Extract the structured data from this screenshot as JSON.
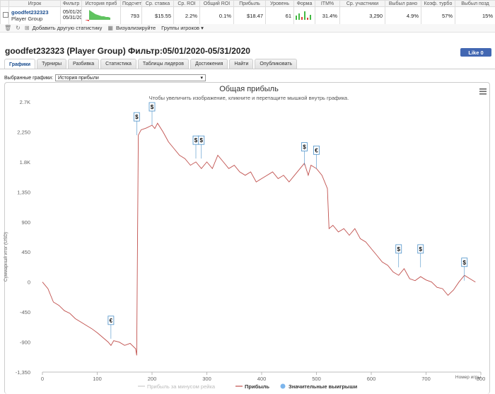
{
  "stats": {
    "headers": [
      "",
      "Игрок",
      "Фильтр",
      "История приб",
      "Подсчет",
      "Ср. ставка",
      "Ср. ROI",
      "Общий ROI",
      "Прибыль",
      "Уровень",
      "Форма",
      "ITM%",
      "Ср. участники",
      "Выбыл рано",
      "Коэф. турбо",
      "Выбыл позд"
    ],
    "row": {
      "player": "goodfet232323",
      "group": "Player Group",
      "filter_from": "05/01/20",
      "filter_to": "05/31/20",
      "count": "793",
      "avg_stake": "$15.55",
      "avg_roi": "2.2%",
      "total_roi": "0.1%",
      "profit": "$18.47",
      "level": "61",
      "itm": "31.4%",
      "avg_entrants": "3,290",
      "early_bust": "4.9%",
      "turbo_ratio": "57%",
      "late_bust": "15%"
    }
  },
  "toolbar": {
    "add_label": "Добавить другую статистику",
    "visualize_label": "Визуализируйте",
    "groups_label": "Группы игроков"
  },
  "page_title": "goodfet232323 (Player Group) Фильтр:05/01/2020-05/31/2020",
  "like_label": "Like 0",
  "tabs": [
    "Графики",
    "Турниры",
    "Разбивка",
    "Статистика",
    "Таблицы лидеров",
    "Достижения",
    "Найти",
    "Опубликовать"
  ],
  "selector": {
    "label": "Выбранные графики:",
    "value": "История прибыли"
  },
  "colors": {
    "profit_line": "#c0504d",
    "rake_line": "#cccccc",
    "flag_border": "#4a90c8",
    "win_marker": "#7cb5ec"
  },
  "chart_data": {
    "type": "line",
    "title": "Общая прибыль",
    "subtitle": "Чтобы увеличить изображение, кликните и перетащите мышкой внутрь графика.",
    "ylabel": "Суммарный итог (USD)",
    "xlabel": "Номер игры",
    "ylim": [
      -1350,
      2700
    ],
    "xlim": [
      0,
      800
    ],
    "yticks": [
      "2.7K",
      "2,250",
      "1.8K",
      "1,350",
      "900",
      "450",
      "0",
      "-450",
      "-900",
      "-1,350"
    ],
    "ytick_values": [
      2700,
      2250,
      1800,
      1350,
      900,
      450,
      0,
      -450,
      -900,
      -1350
    ],
    "xticks": [
      "0",
      "100",
      "200",
      "300",
      "400",
      "500",
      "600",
      "700",
      "800"
    ],
    "xtick_values": [
      0,
      100,
      200,
      300,
      400,
      500,
      600,
      700,
      800
    ],
    "legend": [
      "Прибыль за минусом рейка",
      "Прибыль",
      "Значительные выигрыши"
    ],
    "series": [
      {
        "name": "Прибыль",
        "x": [
          0,
          10,
          20,
          30,
          40,
          50,
          60,
          70,
          80,
          90,
          100,
          110,
          120,
          125,
          130,
          140,
          150,
          160,
          170,
          172,
          175,
          180,
          190,
          200,
          205,
          210,
          220,
          230,
          240,
          250,
          260,
          270,
          280,
          290,
          300,
          310,
          320,
          330,
          340,
          350,
          360,
          370,
          380,
          390,
          400,
          410,
          420,
          430,
          440,
          450,
          460,
          470,
          478,
          485,
          490,
          500,
          510,
          520,
          523,
          530,
          540,
          550,
          560,
          570,
          580,
          590,
          600,
          610,
          620,
          630,
          640,
          650,
          660,
          670,
          680,
          690,
          700,
          710,
          720,
          730,
          740,
          750,
          760,
          770,
          780,
          790
        ],
        "y": [
          0,
          -100,
          -300,
          -350,
          -430,
          -470,
          -550,
          -600,
          -650,
          -700,
          -760,
          -830,
          -900,
          -950,
          -880,
          -900,
          -950,
          -920,
          -1000,
          -1100,
          2200,
          2280,
          2310,
          2350,
          2300,
          2380,
          2250,
          2100,
          2000,
          1900,
          1850,
          1750,
          1800,
          1700,
          1800,
          1700,
          1900,
          1800,
          1700,
          1750,
          1650,
          1600,
          1650,
          1500,
          1550,
          1600,
          1650,
          1550,
          1600,
          1500,
          1600,
          1700,
          1780,
          1600,
          1750,
          1700,
          1600,
          1400,
          800,
          850,
          750,
          800,
          700,
          800,
          650,
          600,
          500,
          400,
          300,
          250,
          150,
          100,
          200,
          50,
          20,
          80,
          30,
          0,
          -80,
          -100,
          -200,
          -120,
          0,
          100,
          50,
          0
        ],
        "color": "#c0504d"
      }
    ],
    "big_wins": [
      {
        "x": 125,
        "y": -850,
        "symbol": "€"
      },
      {
        "x": 172,
        "y": 2200,
        "symbol": "$"
      },
      {
        "x": 200,
        "y": 2350,
        "symbol": "$"
      },
      {
        "x": 280,
        "y": 1850,
        "symbol": "$"
      },
      {
        "x": 290,
        "y": 1850,
        "symbol": "$"
      },
      {
        "x": 478,
        "y": 1750,
        "symbol": "$"
      },
      {
        "x": 500,
        "y": 1700,
        "symbol": "€"
      },
      {
        "x": 650,
        "y": 220,
        "symbol": "$"
      },
      {
        "x": 690,
        "y": 220,
        "symbol": "$"
      },
      {
        "x": 770,
        "y": 20,
        "symbol": "$"
      }
    ]
  }
}
